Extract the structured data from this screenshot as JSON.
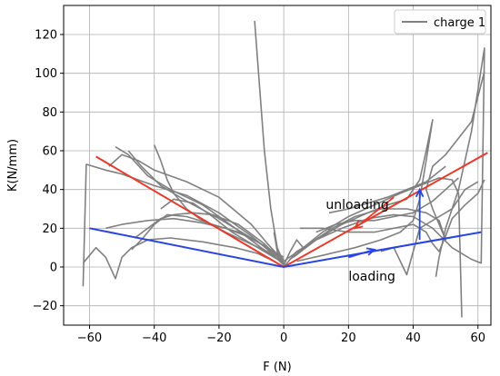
{
  "chart_data": {
    "type": "line",
    "title": "",
    "xlabel": "F (N)",
    "ylabel": "K(N/mm)",
    "xlim": [
      -68,
      64
    ],
    "ylim": [
      -30,
      135
    ],
    "x_ticks": [
      -60,
      -40,
      -20,
      0,
      20,
      40,
      60
    ],
    "y_ticks": [
      -20,
      0,
      20,
      40,
      60,
      80,
      100,
      120
    ],
    "x_tick_labels": [
      "−60",
      "−40",
      "−20",
      "0",
      "20",
      "40",
      "60"
    ],
    "y_tick_labels": [
      "−20",
      "0",
      "20",
      "40",
      "60",
      "80",
      "100",
      "120"
    ],
    "grid": true,
    "legend": {
      "position": "top-right",
      "entries": [
        {
          "label": "charge 1",
          "color": "#808080"
        }
      ]
    },
    "series": [
      {
        "name": "charge 1",
        "color": "#808080",
        "segments": [
          [
            [
              -62,
              -10
            ],
            [
              -61,
              53
            ],
            [
              -55,
              50
            ],
            [
              -50,
              48
            ],
            [
              -45,
              45
            ],
            [
              -40,
              42
            ],
            [
              -30,
              37
            ],
            [
              -20,
              28
            ],
            [
              -10,
              16
            ],
            [
              -5,
              9
            ],
            [
              0,
              1
            ]
          ],
          [
            [
              -62,
              2
            ],
            [
              -58,
              10
            ],
            [
              -55,
              5
            ],
            [
              -52,
              -6
            ],
            [
              -50,
              5
            ],
            [
              -47,
              10
            ],
            [
              -42,
              14
            ],
            [
              -35,
              15
            ],
            [
              -25,
              13
            ],
            [
              -15,
              10
            ],
            [
              -8,
              7
            ],
            [
              -3,
              3
            ],
            [
              0,
              0
            ]
          ],
          [
            [
              -54,
              52
            ],
            [
              -50,
              58
            ],
            [
              -45,
              55
            ],
            [
              -40,
              50
            ],
            [
              -30,
              44
            ],
            [
              -20,
              36
            ],
            [
              -10,
              22
            ],
            [
              -5,
              12
            ],
            [
              0,
              3
            ]
          ],
          [
            [
              -52,
              62
            ],
            [
              -48,
              58
            ],
            [
              -42,
              47
            ],
            [
              -35,
              40
            ],
            [
              -25,
              32
            ],
            [
              -15,
              20
            ],
            [
              -7,
              10
            ],
            [
              0,
              2
            ]
          ],
          [
            [
              -48,
              60
            ],
            [
              -44,
              52
            ],
            [
              -38,
              42
            ],
            [
              -30,
              34
            ],
            [
              -20,
              25
            ],
            [
              -10,
              15
            ],
            [
              0,
              4
            ]
          ],
          [
            [
              -47,
              9
            ],
            [
              -44,
              14
            ],
            [
              -40,
              22
            ],
            [
              -36,
              27
            ],
            [
              -30,
              26
            ],
            [
              -22,
              22
            ],
            [
              -14,
              18
            ],
            [
              -6,
              11
            ],
            [
              0,
              3
            ]
          ],
          [
            [
              -55,
              20
            ],
            [
              -50,
              22
            ],
            [
              -42,
              24
            ],
            [
              -34,
              25
            ],
            [
              -26,
              23
            ],
            [
              -18,
              20
            ],
            [
              -10,
              15
            ],
            [
              0,
              5
            ]
          ],
          [
            [
              -46,
              15
            ],
            [
              -42,
              20
            ],
            [
              -38,
              25
            ],
            [
              -34,
              27
            ],
            [
              -28,
              28
            ],
            [
              -22,
              27
            ],
            [
              -14,
              22
            ],
            [
              -6,
              12
            ],
            [
              0,
              2
            ]
          ],
          [
            [
              -40,
              63
            ],
            [
              -38,
              55
            ],
            [
              -36,
              45
            ],
            [
              -34,
              38
            ],
            [
              -30,
              30
            ],
            [
              -26,
              25
            ],
            [
              -18,
              18
            ],
            [
              0,
              4
            ]
          ],
          [
            [
              -38,
              30
            ],
            [
              -34,
              35
            ],
            [
              -28,
              33
            ],
            [
              -22,
              26
            ],
            [
              -16,
              18
            ],
            [
              -8,
              10
            ],
            [
              0,
              2
            ]
          ],
          [
            [
              -9,
              127
            ],
            [
              -6,
              60
            ],
            [
              -4,
              30
            ],
            [
              -2,
              10
            ],
            [
              0,
              2
            ]
          ],
          [
            [
              -3,
              18
            ],
            [
              -2,
              8
            ],
            [
              0,
              1
            ],
            [
              2,
              8
            ],
            [
              4,
              14
            ],
            [
              6,
              10
            ]
          ],
          [
            [
              0,
              0
            ],
            [
              4,
              8
            ],
            [
              10,
              14
            ],
            [
              18,
              20
            ],
            [
              26,
              25
            ],
            [
              34,
              27
            ],
            [
              40,
              26
            ],
            [
              46,
              20
            ],
            [
              52,
              10
            ],
            [
              58,
              4
            ],
            [
              61,
              2
            ],
            [
              62,
              113
            ],
            [
              58,
              70
            ],
            [
              54,
              40
            ],
            [
              50,
              20
            ],
            [
              48,
              5
            ],
            [
              47,
              -5
            ]
          ],
          [
            [
              0,
              3
            ],
            [
              6,
              10
            ],
            [
              12,
              18
            ],
            [
              20,
              26
            ],
            [
              28,
              32
            ],
            [
              36,
              38
            ],
            [
              42,
              42
            ],
            [
              48,
              46
            ],
            [
              52,
              45
            ],
            [
              54,
              38
            ],
            [
              55,
              -26
            ]
          ],
          [
            [
              2,
              4
            ],
            [
              8,
              12
            ],
            [
              15,
              20
            ],
            [
              22,
              26
            ],
            [
              30,
              30
            ],
            [
              38,
              30
            ],
            [
              44,
              28
            ],
            [
              48,
              24
            ],
            [
              50,
              14
            ],
            [
              46,
              30
            ],
            [
              44,
              40
            ],
            [
              46,
              52
            ],
            [
              50,
              58
            ],
            [
              58,
              75
            ],
            [
              62,
              101
            ]
          ],
          [
            [
              3,
              5
            ],
            [
              10,
              14
            ],
            [
              18,
              22
            ],
            [
              26,
              28
            ],
            [
              32,
              32
            ],
            [
              38,
              35
            ],
            [
              42,
              45
            ],
            [
              44,
              60
            ],
            [
              46,
              76
            ],
            [
              44,
              55
            ],
            [
              42,
              35
            ],
            [
              40,
              24
            ],
            [
              36,
              18
            ],
            [
              30,
              14
            ],
            [
              22,
              10
            ],
            [
              12,
              6
            ],
            [
              4,
              3
            ]
          ],
          [
            [
              5,
              20
            ],
            [
              12,
              20
            ],
            [
              20,
              18
            ],
            [
              28,
              18
            ],
            [
              34,
              20
            ],
            [
              40,
              22
            ],
            [
              44,
              18
            ],
            [
              46,
              12
            ],
            [
              48,
              8
            ],
            [
              50,
              16
            ],
            [
              52,
              25
            ],
            [
              56,
              32
            ],
            [
              60,
              38
            ],
            [
              62,
              45
            ]
          ],
          [
            [
              30,
              8
            ],
            [
              34,
              10
            ],
            [
              38,
              -4
            ],
            [
              42,
              20
            ],
            [
              48,
              26
            ],
            [
              52,
              30
            ],
            [
              56,
              40
            ],
            [
              60,
              44
            ]
          ],
          [
            [
              10,
              18
            ],
            [
              16,
              22
            ],
            [
              22,
              24
            ],
            [
              28,
              24
            ],
            [
              34,
              26
            ],
            [
              40,
              28
            ],
            [
              46,
              34
            ],
            [
              50,
              40
            ],
            [
              54,
              46
            ]
          ],
          [
            [
              14,
              28
            ],
            [
              20,
              30
            ],
            [
              26,
              33
            ],
            [
              32,
              36
            ],
            [
              38,
              40
            ],
            [
              44,
              44
            ],
            [
              50,
              52
            ]
          ]
        ]
      }
    ],
    "reference_lines": [
      {
        "color": "#e8392c",
        "points": [
          [
            -58,
            57
          ],
          [
            0,
            0
          ],
          [
            63,
            59
          ]
        ]
      },
      {
        "color": "#2a44e0",
        "points": [
          [
            -60,
            20
          ],
          [
            0,
            0
          ],
          [
            61,
            18
          ]
        ]
      }
    ],
    "arrows": [
      {
        "color": "#e8392c",
        "from": [
          34,
          36
        ],
        "to": [
          22,
          20
        ]
      },
      {
        "color": "#2a44e0",
        "from": [
          20,
          5
        ],
        "to": [
          28,
          9
        ]
      },
      {
        "color": "#2a44e0",
        "from": [
          42,
          14
        ],
        "to": [
          42,
          40
        ]
      }
    ],
    "annotations": [
      {
        "text": "unloading",
        "x": 13,
        "y": 30
      },
      {
        "text": "loading",
        "x": 20,
        "y": -7
      }
    ]
  }
}
